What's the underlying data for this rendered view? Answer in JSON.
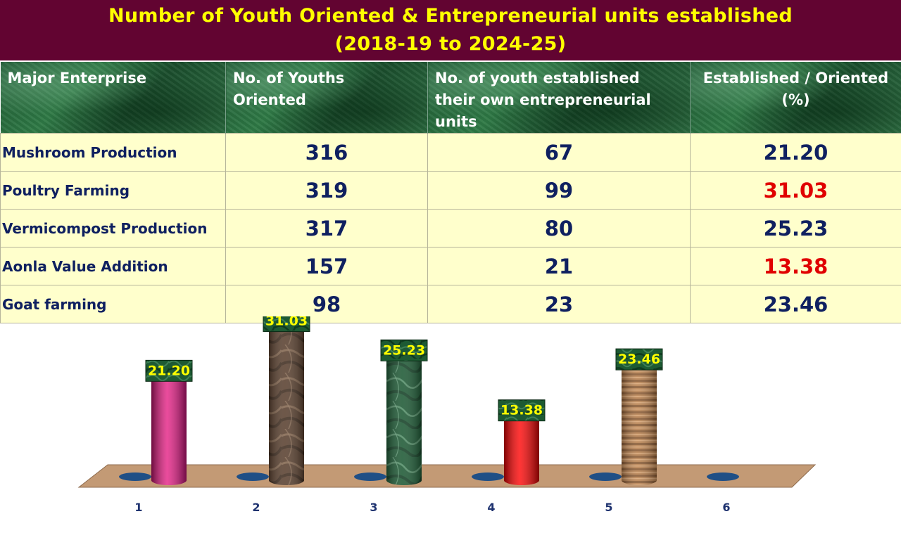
{
  "title": {
    "line1": "Number of Youth Oriented & Entrepreneurial units established",
    "line2": "(2018-19 to 2024-25)"
  },
  "table": {
    "headers": [
      "Major Enterprise",
      "No. of Youths Oriented",
      "No. of youth established their own entrepreneurial units",
      "Established / Oriented (%)"
    ],
    "rows": [
      {
        "enterprise": "Mushroom Production",
        "oriented": "316",
        "established": "67",
        "percent": "21.20",
        "highlight": false
      },
      {
        "enterprise": "Poultry  Farming",
        "oriented": "319",
        "established": "99",
        "percent": "31.03",
        "highlight": true
      },
      {
        "enterprise": "Vermicompost Production",
        "oriented": "317",
        "established": "80",
        "percent": "25.23",
        "highlight": false
      },
      {
        "enterprise": "Aonla Value Addition",
        "oriented": "157",
        "established": "21",
        "percent": "13.38",
        "highlight": true
      },
      {
        "enterprise": "Goat farming",
        "oriented": "98",
        "established": "23",
        "percent": "23.46",
        "highlight": false
      }
    ]
  },
  "colors": {
    "title_bg": "#620431",
    "title_text": "#ffff00",
    "cell_bg": "#ffffcc",
    "cell_text": "#0f2060",
    "highlight_text": "#e00000",
    "floor": "#c39a75",
    "label_bg": "#1d5a33",
    "label_text": "#ffff00"
  },
  "chart_data": {
    "type": "bar",
    "title": "",
    "xlabel": "",
    "ylabel": "",
    "categories": [
      "1",
      "2",
      "3",
      "4",
      "5",
      "6"
    ],
    "values": [
      21.2,
      31.03,
      25.23,
      13.38,
      23.46,
      null
    ],
    "value_labels": [
      "21.20",
      "31.03",
      "25.23",
      "13.38",
      "23.46",
      ""
    ],
    "ylim": [
      0,
      35
    ],
    "grid": false,
    "legend": "none",
    "bar_styles": [
      "magenta",
      "dark-marble",
      "green-marble",
      "red",
      "wood",
      ""
    ]
  }
}
